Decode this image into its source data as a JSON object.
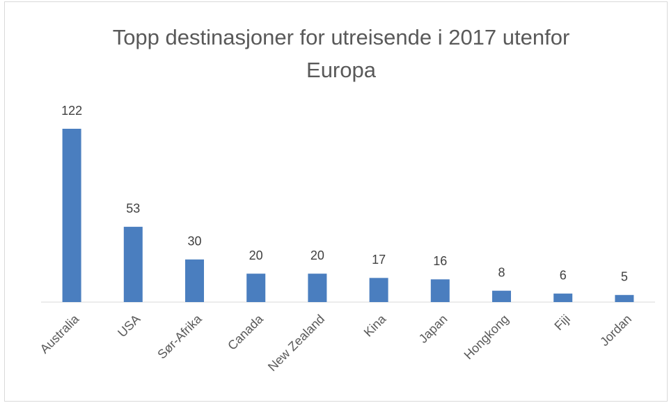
{
  "chart_data": {
    "type": "bar",
    "title": "Topp destinasjoner for utreisende i 2017 utenfor Europa",
    "categories": [
      "Australia",
      "USA",
      "Sør-Afrika",
      "Canada",
      "New Zealand",
      "Kina",
      "Japan",
      "Hongkong",
      "Fiji",
      "Jordan"
    ],
    "values": [
      122,
      53,
      30,
      20,
      20,
      17,
      16,
      8,
      6,
      5
    ],
    "color": "#4a7ebf"
  }
}
